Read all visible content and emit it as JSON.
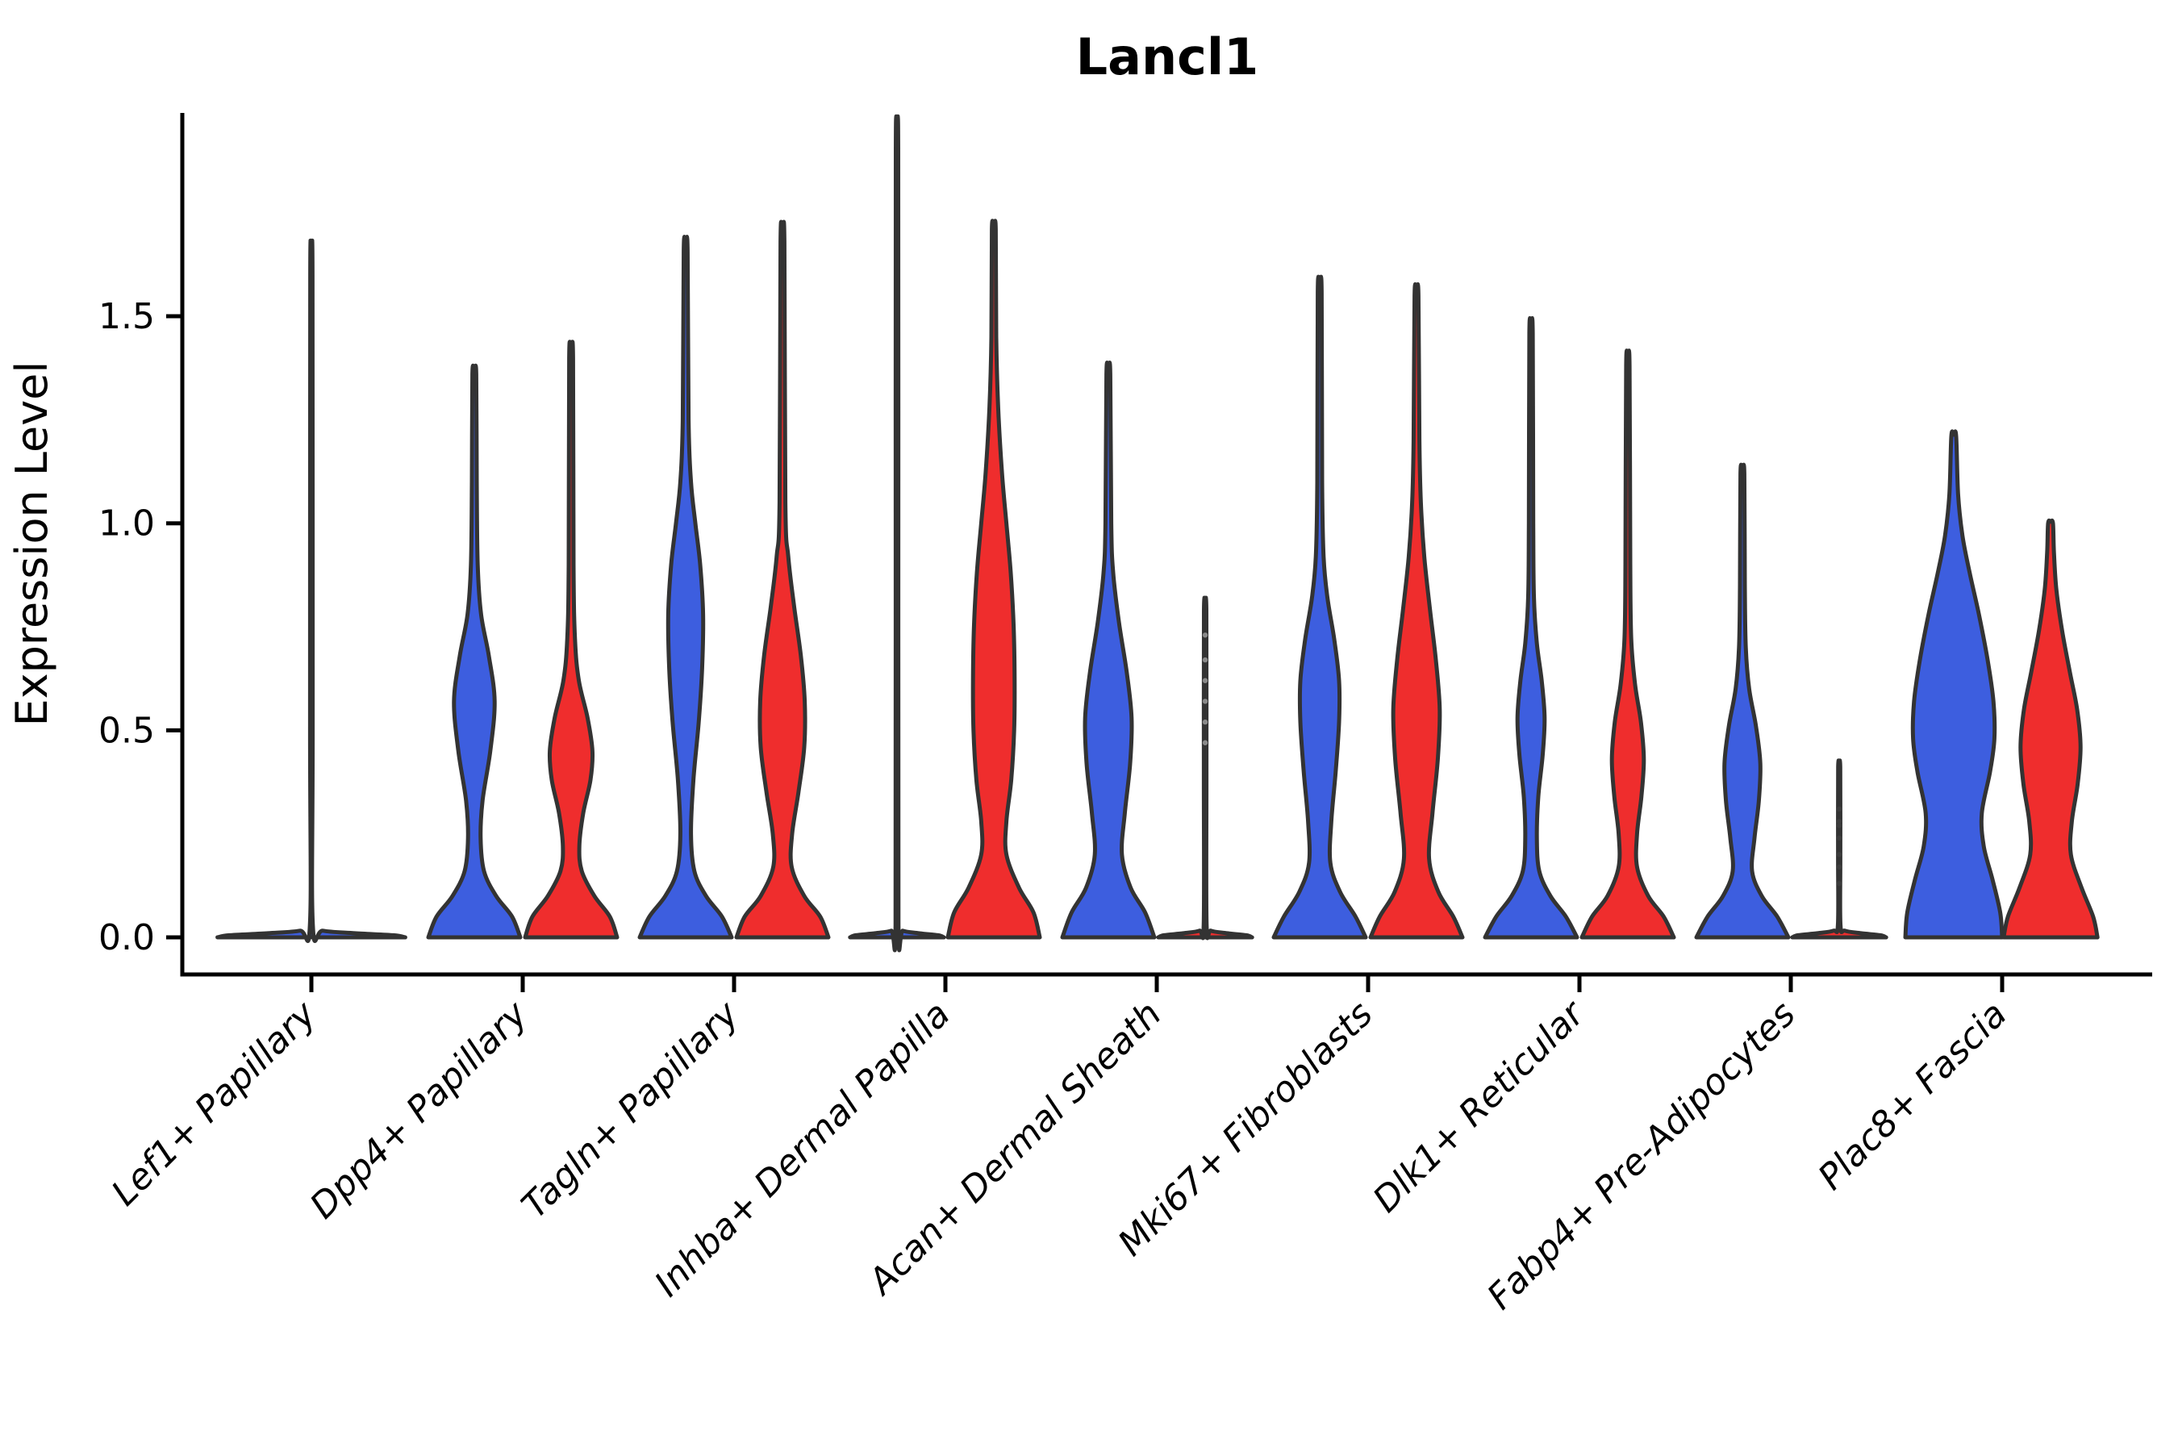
{
  "chart_data": {
    "type": "violin",
    "title": "Lancl1",
    "xlabel": "",
    "ylabel": "Expression Level",
    "yticks": [
      "0.0",
      "0.5",
      "1.0",
      "1.5"
    ],
    "ytick_values": [
      0.0,
      0.5,
      1.0,
      1.5
    ],
    "ylim": [
      0,
      1.99
    ],
    "grid": false,
    "legend_position": "none",
    "split_colors": {
      "blue": "#3D5EDF",
      "red": "#EF2D2D"
    },
    "edge_color": "#333333",
    "axis_color": "#000000",
    "categories": [
      "Lef1+ Papillary",
      "Dpp4+ Papillary",
      "Tagln+ Papillary",
      "Inhba+ Dermal Papilla",
      "Acan+ Dermal Sheath",
      "Mki67+ Fibroblasts",
      "Dlk1+ Reticular",
      "Fabp4+ Pre-Adipocytes",
      "Plac8+ Fascia"
    ],
    "violins": [
      {
        "category": "Lef1+ Papillary",
        "group": "single",
        "color": "blue",
        "max_expression": 1.6,
        "flat": true,
        "profile": [
          [
            0,
            0.97
          ],
          [
            0.005,
            0.85
          ],
          [
            0.01,
            0.45
          ],
          [
            0.016,
            0.12
          ],
          [
            0.03,
            0.015
          ],
          [
            0.5,
            0.013
          ],
          [
            1.6,
            0.012
          ]
        ]
      },
      {
        "category": "Dpp4+ Papillary",
        "group": "blue",
        "color": "blue",
        "max_expression": 1.36,
        "flat": false,
        "profile": [
          [
            0,
            0.95
          ],
          [
            0.05,
            0.78
          ],
          [
            0.1,
            0.45
          ],
          [
            0.16,
            0.2
          ],
          [
            0.24,
            0.13
          ],
          [
            0.33,
            0.17
          ],
          [
            0.45,
            0.33
          ],
          [
            0.57,
            0.42
          ],
          [
            0.68,
            0.3
          ],
          [
            0.78,
            0.14
          ],
          [
            0.9,
            0.07
          ],
          [
            1.1,
            0.05
          ],
          [
            1.36,
            0.04
          ]
        ]
      },
      {
        "category": "Dpp4+ Papillary",
        "group": "red",
        "color": "red",
        "max_expression": 1.4,
        "flat": false,
        "profile": [
          [
            0,
            0.95
          ],
          [
            0.05,
            0.8
          ],
          [
            0.1,
            0.48
          ],
          [
            0.16,
            0.22
          ],
          [
            0.22,
            0.17
          ],
          [
            0.3,
            0.25
          ],
          [
            0.38,
            0.4
          ],
          [
            0.45,
            0.44
          ],
          [
            0.53,
            0.34
          ],
          [
            0.62,
            0.16
          ],
          [
            0.72,
            0.08
          ],
          [
            0.9,
            0.05
          ],
          [
            1.4,
            0.04
          ]
        ]
      },
      {
        "category": "Tagln+ Papillary",
        "group": "blue",
        "color": "blue",
        "max_expression": 1.66,
        "flat": false,
        "profile": [
          [
            0,
            0.95
          ],
          [
            0.05,
            0.75
          ],
          [
            0.1,
            0.42
          ],
          [
            0.16,
            0.18
          ],
          [
            0.25,
            0.11
          ],
          [
            0.38,
            0.16
          ],
          [
            0.52,
            0.27
          ],
          [
            0.65,
            0.34
          ],
          [
            0.78,
            0.36
          ],
          [
            0.9,
            0.3
          ],
          [
            1.0,
            0.2
          ],
          [
            1.1,
            0.11
          ],
          [
            1.25,
            0.06
          ],
          [
            1.66,
            0.04
          ]
        ]
      },
      {
        "category": "Tagln+ Papillary",
        "group": "red",
        "color": "red",
        "max_expression": 1.68,
        "flat": false,
        "profile": [
          [
            0,
            0.95
          ],
          [
            0.05,
            0.78
          ],
          [
            0.1,
            0.45
          ],
          [
            0.17,
            0.19
          ],
          [
            0.25,
            0.2
          ],
          [
            0.35,
            0.33
          ],
          [
            0.46,
            0.45
          ],
          [
            0.57,
            0.46
          ],
          [
            0.68,
            0.38
          ],
          [
            0.8,
            0.24
          ],
          [
            0.92,
            0.12
          ],
          [
            1.05,
            0.06
          ],
          [
            1.68,
            0.04
          ]
        ]
      },
      {
        "category": "Inhba+ Dermal Papilla",
        "group": "blue",
        "color": "blue",
        "max_expression": 1.9,
        "flat": true,
        "profile": [
          [
            0,
            0.97
          ],
          [
            0.005,
            0.85
          ],
          [
            0.01,
            0.45
          ],
          [
            0.016,
            0.12
          ],
          [
            0.03,
            0.03
          ],
          [
            0.8,
            0.027
          ],
          [
            1.9,
            0.025
          ]
        ]
      },
      {
        "category": "Inhba+ Dermal Papilla",
        "group": "red",
        "color": "red",
        "max_expression": 1.71,
        "flat": false,
        "profile": [
          [
            0,
            0.95
          ],
          [
            0.06,
            0.82
          ],
          [
            0.12,
            0.52
          ],
          [
            0.2,
            0.26
          ],
          [
            0.28,
            0.26
          ],
          [
            0.38,
            0.36
          ],
          [
            0.5,
            0.42
          ],
          [
            0.62,
            0.43
          ],
          [
            0.75,
            0.41
          ],
          [
            0.88,
            0.35
          ],
          [
            1.0,
            0.26
          ],
          [
            1.12,
            0.17
          ],
          [
            1.28,
            0.09
          ],
          [
            1.45,
            0.05
          ],
          [
            1.71,
            0.04
          ]
        ]
      },
      {
        "category": "Acan+ Dermal Sheath",
        "group": "blue",
        "color": "blue",
        "max_expression": 1.36,
        "flat": false,
        "profile": [
          [
            0,
            0.95
          ],
          [
            0.06,
            0.76
          ],
          [
            0.12,
            0.46
          ],
          [
            0.2,
            0.28
          ],
          [
            0.3,
            0.34
          ],
          [
            0.42,
            0.45
          ],
          [
            0.53,
            0.48
          ],
          [
            0.64,
            0.38
          ],
          [
            0.76,
            0.22
          ],
          [
            0.88,
            0.1
          ],
          [
            1.0,
            0.06
          ],
          [
            1.36,
            0.04
          ]
        ]
      },
      {
        "category": "Acan+ Dermal Sheath",
        "group": "red",
        "color": "red",
        "max_expression": 0.79,
        "flat": true,
        "dots": [
          0.47,
          0.52,
          0.57,
          0.62,
          0.67,
          0.73
        ],
        "dot_color": "#8a8a8a",
        "profile": [
          [
            0,
            0.97
          ],
          [
            0.005,
            0.85
          ],
          [
            0.01,
            0.45
          ],
          [
            0.016,
            0.12
          ],
          [
            0.03,
            0.03
          ],
          [
            0.4,
            0.027
          ],
          [
            0.79,
            0.025
          ]
        ]
      },
      {
        "category": "Mki67+ Fibroblasts",
        "group": "blue",
        "color": "blue",
        "max_expression": 1.56,
        "flat": false,
        "profile": [
          [
            0,
            0.95
          ],
          [
            0.05,
            0.74
          ],
          [
            0.11,
            0.42
          ],
          [
            0.18,
            0.22
          ],
          [
            0.28,
            0.24
          ],
          [
            0.4,
            0.33
          ],
          [
            0.52,
            0.4
          ],
          [
            0.62,
            0.4
          ],
          [
            0.72,
            0.3
          ],
          [
            0.82,
            0.16
          ],
          [
            0.92,
            0.08
          ],
          [
            1.1,
            0.05
          ],
          [
            1.56,
            0.04
          ]
        ]
      },
      {
        "category": "Mki67+ Fibroblasts",
        "group": "red",
        "color": "red",
        "max_expression": 1.55,
        "flat": false,
        "profile": [
          [
            0,
            0.95
          ],
          [
            0.05,
            0.76
          ],
          [
            0.11,
            0.45
          ],
          [
            0.19,
            0.26
          ],
          [
            0.3,
            0.33
          ],
          [
            0.43,
            0.44
          ],
          [
            0.55,
            0.48
          ],
          [
            0.67,
            0.4
          ],
          [
            0.79,
            0.28
          ],
          [
            0.92,
            0.16
          ],
          [
            1.05,
            0.09
          ],
          [
            1.2,
            0.06
          ],
          [
            1.55,
            0.04
          ]
        ]
      },
      {
        "category": "Dlk1+ Reticular",
        "group": "blue",
        "color": "blue",
        "max_expression": 1.46,
        "flat": false,
        "profile": [
          [
            0,
            0.95
          ],
          [
            0.05,
            0.72
          ],
          [
            0.1,
            0.4
          ],
          [
            0.16,
            0.17
          ],
          [
            0.24,
            0.12
          ],
          [
            0.34,
            0.15
          ],
          [
            0.44,
            0.24
          ],
          [
            0.53,
            0.28
          ],
          [
            0.62,
            0.22
          ],
          [
            0.71,
            0.12
          ],
          [
            0.82,
            0.06
          ],
          [
            1.0,
            0.045
          ],
          [
            1.46,
            0.035
          ]
        ]
      },
      {
        "category": "Dlk1+ Reticular",
        "group": "red",
        "color": "red",
        "max_expression": 1.38,
        "flat": false,
        "profile": [
          [
            0,
            0.95
          ],
          [
            0.05,
            0.74
          ],
          [
            0.1,
            0.42
          ],
          [
            0.17,
            0.19
          ],
          [
            0.25,
            0.19
          ],
          [
            0.34,
            0.28
          ],
          [
            0.43,
            0.33
          ],
          [
            0.52,
            0.27
          ],
          [
            0.61,
            0.15
          ],
          [
            0.72,
            0.07
          ],
          [
            0.9,
            0.05
          ],
          [
            1.38,
            0.035
          ]
        ]
      },
      {
        "category": "Fabp4+ Pre-Adipocytes",
        "group": "blue",
        "color": "blue",
        "max_expression": 1.12,
        "flat": false,
        "profile": [
          [
            0,
            0.95
          ],
          [
            0.05,
            0.72
          ],
          [
            0.1,
            0.4
          ],
          [
            0.16,
            0.2
          ],
          [
            0.24,
            0.25
          ],
          [
            0.33,
            0.34
          ],
          [
            0.42,
            0.37
          ],
          [
            0.51,
            0.28
          ],
          [
            0.6,
            0.14
          ],
          [
            0.7,
            0.07
          ],
          [
            0.85,
            0.05
          ],
          [
            1.12,
            0.04
          ]
        ]
      },
      {
        "category": "Fabp4+ Pre-Adipocytes",
        "group": "red",
        "color": "red",
        "max_expression": 0.41,
        "flat": true,
        "dots": [
          0.13,
          0.17,
          0.2,
          0.24,
          0.27,
          0.28,
          0.31
        ],
        "dot_color": "#3c3c3c",
        "profile": [
          [
            0,
            0.97
          ],
          [
            0.005,
            0.85
          ],
          [
            0.01,
            0.45
          ],
          [
            0.016,
            0.12
          ],
          [
            0.03,
            0.026
          ],
          [
            0.2,
            0.024
          ],
          [
            0.41,
            0.022
          ]
        ]
      },
      {
        "category": "Plac8+ Fascia",
        "group": "blue",
        "color": "blue",
        "max_expression": 1.21,
        "flat": false,
        "profile": [
          [
            0,
            1.0
          ],
          [
            0.06,
            0.96
          ],
          [
            0.14,
            0.8
          ],
          [
            0.22,
            0.62
          ],
          [
            0.3,
            0.58
          ],
          [
            0.4,
            0.75
          ],
          [
            0.48,
            0.84
          ],
          [
            0.57,
            0.82
          ],
          [
            0.67,
            0.7
          ],
          [
            0.78,
            0.52
          ],
          [
            0.88,
            0.33
          ],
          [
            0.97,
            0.18
          ],
          [
            1.07,
            0.09
          ],
          [
            1.21,
            0.05
          ]
        ]
      },
      {
        "category": "Plac8+ Fascia",
        "group": "red",
        "color": "red",
        "max_expression": 1.0,
        "flat": false,
        "profile": [
          [
            0,
            0.97
          ],
          [
            0.05,
            0.88
          ],
          [
            0.12,
            0.64
          ],
          [
            0.2,
            0.42
          ],
          [
            0.28,
            0.44
          ],
          [
            0.37,
            0.56
          ],
          [
            0.46,
            0.62
          ],
          [
            0.55,
            0.55
          ],
          [
            0.64,
            0.4
          ],
          [
            0.74,
            0.24
          ],
          [
            0.84,
            0.12
          ],
          [
            0.93,
            0.07
          ],
          [
            1.0,
            0.05
          ]
        ]
      }
    ]
  }
}
